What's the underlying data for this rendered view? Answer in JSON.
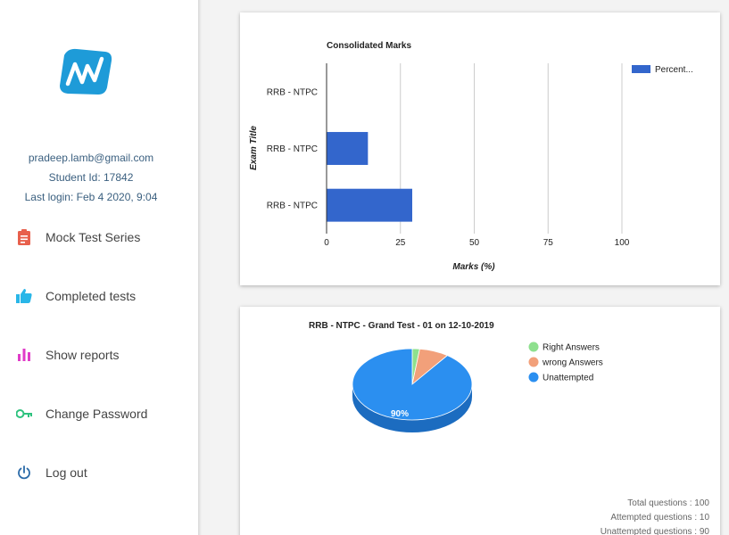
{
  "user": {
    "email": "pradeep.lamb@gmail.com",
    "student_id": "Student Id: 17842",
    "last_login": "Last login: Feb 4 2020, 9:04"
  },
  "nav": {
    "items": [
      {
        "label": "Mock Test Series",
        "icon": "clipboard-icon",
        "color": "#e8604c"
      },
      {
        "label": "Completed tests",
        "icon": "thumbs-up-icon",
        "color": "#29b6e8"
      },
      {
        "label": "Show reports",
        "icon": "bar-chart-icon",
        "color": "#e03cc8"
      },
      {
        "label": "Change Password",
        "icon": "key-icon",
        "color": "#2ec27e"
      },
      {
        "label": "Log out",
        "icon": "power-icon",
        "color": "#2a6aa8"
      }
    ]
  },
  "colors": {
    "accent": "#3366cc",
    "logo": "#1e9bd8"
  },
  "chart_data": [
    {
      "type": "bar",
      "orientation": "horizontal",
      "title": "Consolidated Marks",
      "categories": [
        "RRB - NTPC",
        "RRB - NTPC",
        "RRB - NTPC"
      ],
      "series": [
        {
          "name": "Percent...",
          "values": [
            0,
            14,
            29
          ],
          "color": "#3366cc"
        }
      ],
      "xlabel": "Marks (%)",
      "ylabel": "Exam Title",
      "xlim": [
        0,
        100
      ],
      "xticks": [
        "0",
        "25",
        "50",
        "75",
        "100"
      ],
      "grid": true,
      "legend": "top-right"
    },
    {
      "type": "pie",
      "style": "3d",
      "title": "RRB - NTPC - Grand Test - 01 on 12-10-2019",
      "slices": [
        {
          "label": "Right Answers",
          "value": 2,
          "color": "#8ee08e"
        },
        {
          "label": "wrong Answers",
          "value": 8,
          "color": "#f2a07a"
        },
        {
          "label": "Unattempted",
          "value": 90,
          "color": "#2b8ff0"
        }
      ],
      "data_labels": [
        "",
        "",
        "90%"
      ],
      "legend": "right"
    }
  ],
  "stats": {
    "total": "Total questions : 100",
    "attempted": "Attempted questions : 10",
    "unattempted": "Unattempted questions : 90"
  }
}
